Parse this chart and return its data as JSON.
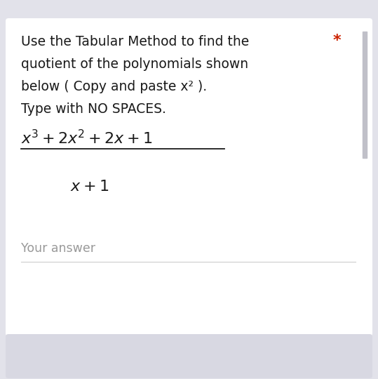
{
  "bg_color": "#e2e2ea",
  "card_color": "#ffffff",
  "card_bottom_color": "#d8d8e2",
  "text_color": "#1a1a1a",
  "asterisk_color": "#cc2200",
  "answer_color": "#999999",
  "line_color": "#cccccc",
  "scrollbar_color": "#c0c0c8",
  "instruction_lines": [
    "Use the Tabular Method to find the",
    "quotient of the polynomials shown",
    "below ( Copy and paste x² ).",
    "Type with NO SPACES."
  ],
  "asterisk": "*",
  "numerator": "$x^3 + 2x^2 + 2x + 1$",
  "denominator": "$x + 1$",
  "your_answer": "Your answer",
  "fig_width": 5.39,
  "fig_height": 5.4,
  "dpi": 100
}
